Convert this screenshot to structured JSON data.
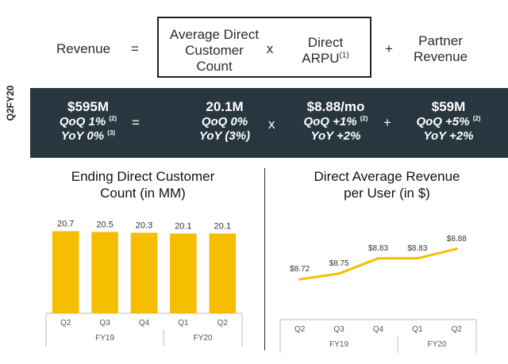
{
  "equation": {
    "revenue": "Revenue",
    "equals": "=",
    "adc_line1": "Average Direct",
    "adc_line2": "Customer",
    "adc_line3": "Count",
    "times": "x",
    "arpu_line1": "Direct",
    "arpu_line2": "ARPU",
    "arpu_note": "(1)",
    "plus": "+",
    "partner_line1": "Partner",
    "partner_line2": "Revenue"
  },
  "band": {
    "period_label": "Q2FY20",
    "revenue": {
      "value": "$595M",
      "qoq": "QoQ 1%",
      "qoq_note": "(2)",
      "yoy": "YoY 0%",
      "yoy_note": "(3)"
    },
    "equals": "=",
    "customers": {
      "value": "20.1M",
      "qoq": "QoQ 0%",
      "yoy": "YoY (3%)"
    },
    "times": "x",
    "arpu": {
      "value": "$8.88/mo",
      "qoq": "QoQ +1%",
      "qoq_note": "(2)",
      "yoy": "YoY +2%"
    },
    "plus": "+",
    "partner": {
      "value": "$59M",
      "qoq": "QoQ +5%",
      "qoq_note": "(2)",
      "yoy": "YoY +2%"
    }
  },
  "colors": {
    "accent": "#F5BE00",
    "band_bg": "#283640"
  },
  "chart_data": [
    {
      "type": "bar",
      "title_line1": "Ending Direct Customer",
      "title_line2": "Count (in MM)",
      "categories": [
        "Q2",
        "Q3",
        "Q4",
        "Q1",
        "Q2"
      ],
      "groups": [
        {
          "label": "FY19",
          "span": 3
        },
        {
          "label": "FY20",
          "span": 2
        }
      ],
      "values": [
        20.7,
        20.5,
        20.3,
        20.1,
        20.1
      ],
      "labels": [
        "20.7",
        "20.5",
        "20.3",
        "20.1",
        "20.1"
      ],
      "ylim": [
        0,
        24
      ]
    },
    {
      "type": "line",
      "title_line1": "Direct Average Revenue",
      "title_line2": "per User (in $)",
      "categories": [
        "Q2",
        "Q3",
        "Q4",
        "Q1",
        "Q2"
      ],
      "groups": [
        {
          "label": "FY19",
          "span": 3
        },
        {
          "label": "FY20",
          "span": 2
        }
      ],
      "values": [
        8.72,
        8.75,
        8.83,
        8.83,
        8.88
      ],
      "labels": [
        "$8.72",
        "$8.75",
        "$8.83",
        "$8.83",
        "$8.88"
      ],
      "ylim": [
        8.5,
        9.0
      ]
    }
  ]
}
